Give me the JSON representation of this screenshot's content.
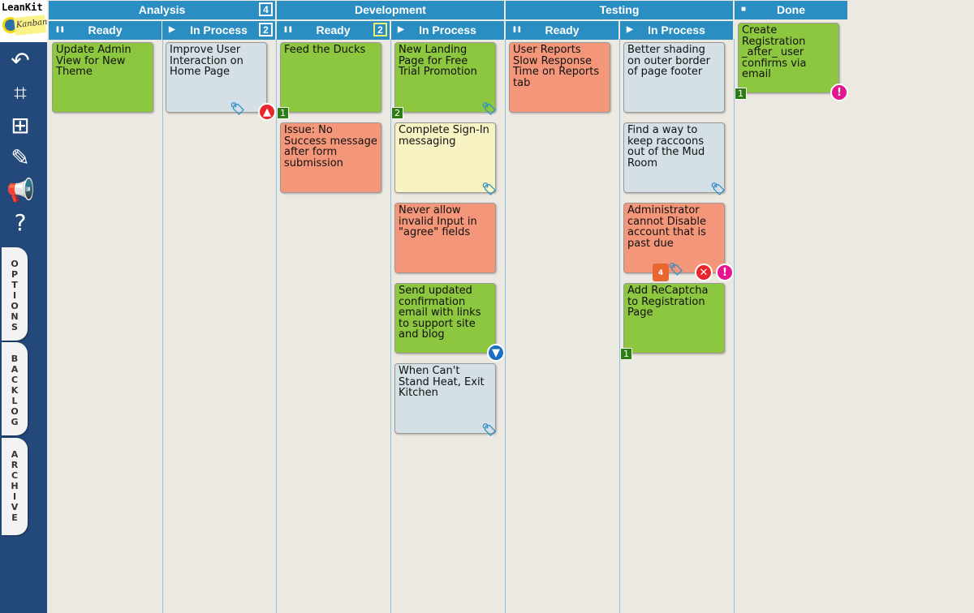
{
  "app": {
    "logo_top": "LeanKit",
    "logo_note": "Kanban"
  },
  "sidebar": {
    "icons": [
      "back-arrow-icon",
      "binoculars-icon",
      "add-card-icon",
      "edit-icon",
      "megaphone-icon",
      "help-icon"
    ],
    "tabs": [
      "OPTIONS",
      "BACKLOG",
      "ARCHIVE"
    ]
  },
  "groups": [
    {
      "label": "Analysis",
      "count": "4"
    },
    {
      "label": "Development"
    },
    {
      "label": "Testing"
    },
    {
      "label": "Done"
    }
  ],
  "lanes": [
    {
      "label": "Ready",
      "state": "paused",
      "cards": [
        {
          "text": "Update Admin View for New Theme",
          "color": "#8dc63f"
        }
      ]
    },
    {
      "label": "In Process",
      "state": "active",
      "count": "2",
      "cards": [
        {
          "text": "Improve User Interaction on Home Page",
          "color": "#d4dfe6",
          "icons": [
            "tag",
            "priority-high"
          ]
        }
      ]
    },
    {
      "label": "Ready",
      "state": "paused",
      "count": "2",
      "cards": [
        {
          "text": "Feed the Ducks",
          "color": "#8dc63f",
          "badge": "1"
        },
        {
          "text": "Issue: No Success message after form submission",
          "color": "#f4967a"
        }
      ]
    },
    {
      "label": "In Process",
      "state": "active",
      "cards": [
        {
          "text": "New Landing Page for Free Trial Promotion",
          "color": "#8dc63f",
          "badge": "2",
          "icons": [
            "tag"
          ]
        },
        {
          "text": "Complete Sign-In messaging",
          "color": "#f7f3c2",
          "icons": [
            "tag"
          ]
        },
        {
          "text": "Never allow invalid Input in \"agree\" fields",
          "color": "#f4967a"
        },
        {
          "text": "Send updated confirmation email with links to support site and blog",
          "color": "#8dc63f",
          "icons": [
            "priority-low"
          ]
        },
        {
          "text": "When Can't Stand Heat, Exit Kitchen",
          "color": "#d4dfe6",
          "icons": [
            "tag"
          ]
        }
      ]
    },
    {
      "label": "Ready",
      "state": "paused",
      "cards": [
        {
          "text": "User Reports Slow Response Time on Reports tab",
          "color": "#f4967a"
        }
      ]
    },
    {
      "label": "In Process",
      "state": "active",
      "cards": [
        {
          "text": "Better shading on outer border of page footer",
          "color": "#d4dfe6"
        },
        {
          "text": "Find a way to keep raccoons out of the Mud Room",
          "color": "#d4dfe6",
          "icons": [
            "tag"
          ]
        },
        {
          "text": "Administrator cannot Disable account that is past due",
          "color": "#f4967a",
          "due": "4",
          "icons": [
            "calendar",
            "tag",
            "blocked",
            "expedite"
          ]
        },
        {
          "text": "Add ReCaptcha to Registration Page",
          "color": "#8dc63f",
          "badge": "1"
        }
      ]
    },
    {
      "label": "",
      "state": "done",
      "cards": [
        {
          "text": "Create Registration _after_ user confirms via email",
          "color": "#8dc63f",
          "badge": "1",
          "icons": [
            "expedite"
          ]
        }
      ]
    }
  ],
  "colors": {
    "header": "#2a8ec2",
    "sidebar": "#23487a",
    "green": "#8dc63f",
    "red": "#f4967a",
    "grey": "#d4dfe6",
    "yellow": "#f7f3c2"
  }
}
